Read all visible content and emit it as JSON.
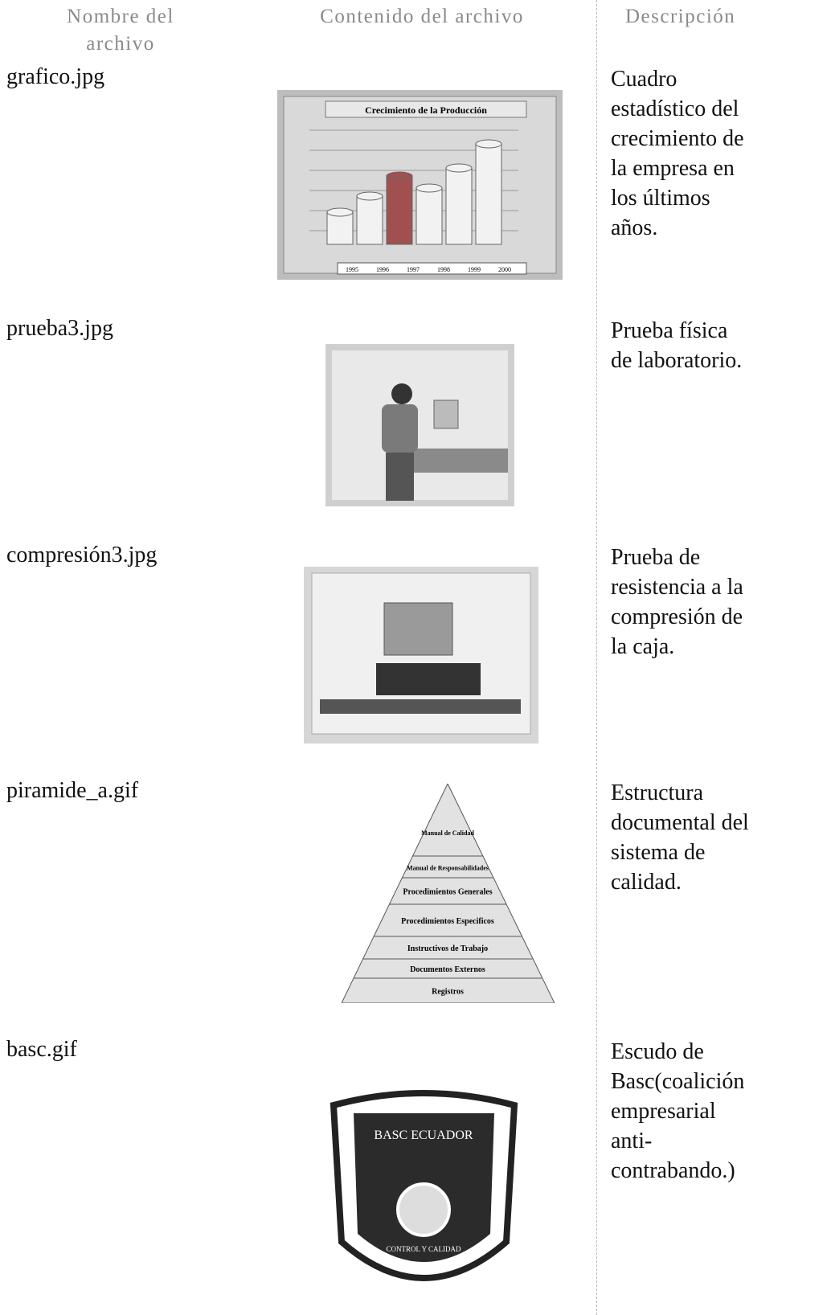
{
  "header": {
    "columns": [
      "Nombre del archivo",
      "Contenido del archivo",
      "Descripción"
    ]
  },
  "rows": [
    {
      "file": "grafico.jpg",
      "image": {
        "title": "Crecimiento de la Producción",
        "legend": [
          "1995",
          "1996",
          "1997",
          "1998",
          "1999",
          "2000"
        ]
      },
      "description": [
        "Cuadro",
        "estadístico del",
        "crecimiento de",
        "la empresa en",
        "los últimos",
        "años."
      ]
    },
    {
      "file": "prueba3.jpg",
      "description": [
        "Prueba física",
        "de laboratorio."
      ]
    },
    {
      "file": "compresión3.jpg",
      "description": [
        "Prueba de",
        "resistencia a la",
        "compresión de",
        "la caja."
      ]
    },
    {
      "file": "piramide_a.gif",
      "image": {
        "levels": [
          "Manual de Calidad",
          "Manual de Responsabilidades",
          "Procedimientos Generales",
          "Procedimientos Especificos",
          "Instructivos de Trabajo",
          "Documentos Externos",
          "Registros"
        ]
      },
      "description": [
        "Estructura",
        "documental del",
        "sistema de",
        "calidad."
      ]
    },
    {
      "file": "basc.gif",
      "image": {
        "title": "BASC ECUADOR",
        "motto": "CONTROL Y CALIDAD"
      },
      "description": [
        "Escudo de",
        "Basc(coalición",
        "empresarial",
        "anti-",
        "contrabando.)"
      ]
    }
  ]
}
